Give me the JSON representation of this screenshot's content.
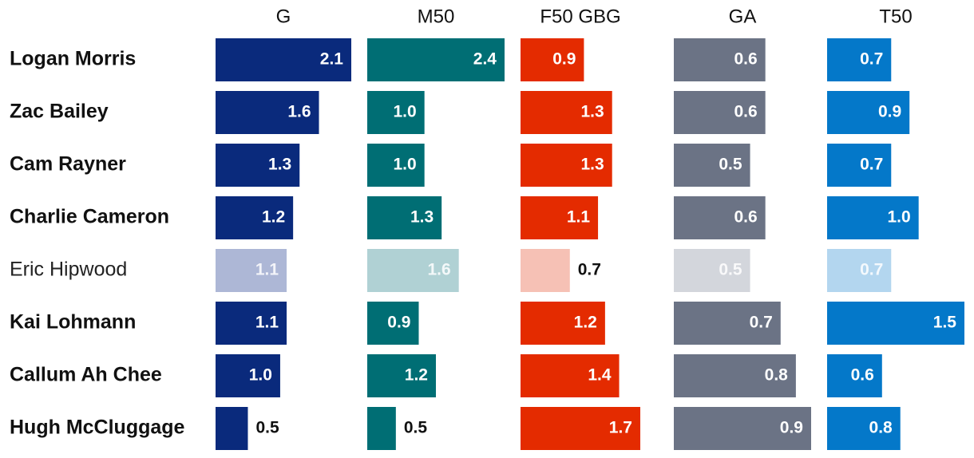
{
  "chart_data": {
    "type": "bar",
    "categories": [
      "Logan Morris",
      "Zac Bailey",
      "Cam Rayner",
      "Charlie Cameron",
      "Eric Hipwood",
      "Kai Lohmann",
      "Callum Ah Chee",
      "Hugh McCluggage"
    ],
    "highlight_muted": [
      "Eric Hipwood"
    ],
    "series": [
      {
        "name": "G",
        "color": "#0a2a7c",
        "muted_color": "#adb7d6",
        "max": 2.1,
        "values": [
          2.1,
          1.6,
          1.3,
          1.2,
          1.1,
          1.1,
          1.0,
          0.5
        ]
      },
      {
        "name": "M50",
        "color": "#006e74",
        "muted_color": "#b0d1d4",
        "max": 2.4,
        "values": [
          2.4,
          1.0,
          1.0,
          1.3,
          1.6,
          0.9,
          1.2,
          0.5
        ]
      },
      {
        "name": "F50 GBG",
        "color": "#e42b00",
        "muted_color": "#f6c1b5",
        "max": 1.7,
        "values": [
          0.9,
          1.3,
          1.3,
          1.1,
          0.7,
          1.2,
          1.4,
          1.7
        ]
      },
      {
        "name": "GA",
        "color": "#6b7385",
        "muted_color": "#d3d6dc",
        "max": 0.9,
        "values": [
          0.6,
          0.6,
          0.5,
          0.6,
          0.5,
          0.7,
          0.8,
          0.9
        ]
      },
      {
        "name": "T50",
        "color": "#0478c9",
        "muted_color": "#b3d6ef",
        "max": 1.5,
        "values": [
          0.7,
          0.9,
          0.7,
          1.0,
          0.7,
          1.5,
          0.6,
          0.8
        ]
      }
    ],
    "value_format": "one-decimal",
    "grid": false,
    "legend": "none"
  }
}
